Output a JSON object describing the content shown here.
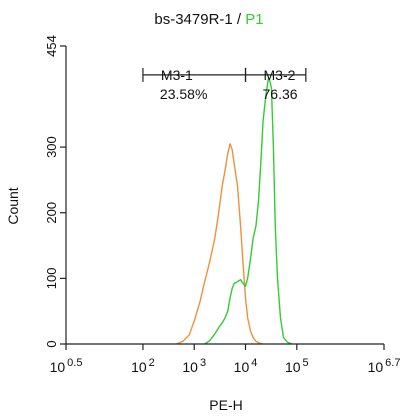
{
  "chart_data": {
    "type": "line",
    "title_prefix": "bs-3479R-1 / ",
    "title_highlight": "P1",
    "xlabel": "PE-H",
    "ylabel": "Count",
    "x_scale": "log",
    "xlim": [
      3.1623,
      5011872.3
    ],
    "ylim": [
      0,
      454
    ],
    "y_ticks": [
      0,
      100,
      200,
      300,
      454
    ],
    "x_ticks": [
      {
        "value": 3.1623,
        "base": "10",
        "exp": "0.5"
      },
      {
        "value": 100,
        "base": "10",
        "exp": "2"
      },
      {
        "value": 1000,
        "base": "10",
        "exp": "3"
      },
      {
        "value": 10000,
        "base": "10",
        "exp": "4"
      },
      {
        "value": 100000,
        "base": "10",
        "exp": "5"
      },
      {
        "value": 5011872.3,
        "base": "10",
        "exp": "6.7"
      }
    ],
    "colors": {
      "control": "#f0903a",
      "sample": "#33cc33",
      "title_highlight": "#33cc33",
      "axis": "#222222"
    },
    "series": [
      {
        "key": "control",
        "x": [
          450,
          600,
          800,
          1000,
          1300,
          1600,
          2000,
          2500,
          3000,
          3500,
          4000,
          4500,
          5000,
          5500,
          6000,
          7000,
          8000,
          9000,
          10000,
          11000,
          12500,
          14000,
          16000,
          19000,
          22000
        ],
        "y": [
          0,
          4,
          14,
          35,
          65,
          95,
          125,
          160,
          200,
          240,
          265,
          290,
          305,
          296,
          275,
          240,
          180,
          120,
          70,
          40,
          20,
          10,
          4,
          1,
          0
        ]
      },
      {
        "key": "sample",
        "x": [
          1600,
          2000,
          2500,
          3000,
          3500,
          4000,
          4500,
          5000,
          5500,
          6000,
          7000,
          8000,
          9000,
          10000,
          11000,
          12500,
          14000,
          16000,
          18000,
          20000,
          22000,
          25000,
          28000,
          30000,
          32000,
          35000,
          38000,
          42000,
          48000,
          55000,
          65000,
          80000
        ],
        "y": [
          0,
          5,
          15,
          25,
          32,
          40,
          50,
          70,
          85,
          92,
          95,
          98,
          92,
          88,
          100,
          130,
          160,
          180,
          220,
          280,
          340,
          380,
          405,
          400,
          390,
          300,
          180,
          100,
          40,
          10,
          3,
          0
        ]
      }
    ],
    "gates": [
      {
        "label": "M3-1",
        "percent": "23.58%",
        "x_start": 100,
        "x_end": 10000
      },
      {
        "label": "M3-2",
        "percent": "76.36",
        "x_start": 10000,
        "x_end": 150000
      }
    ],
    "gate_y": 410
  }
}
